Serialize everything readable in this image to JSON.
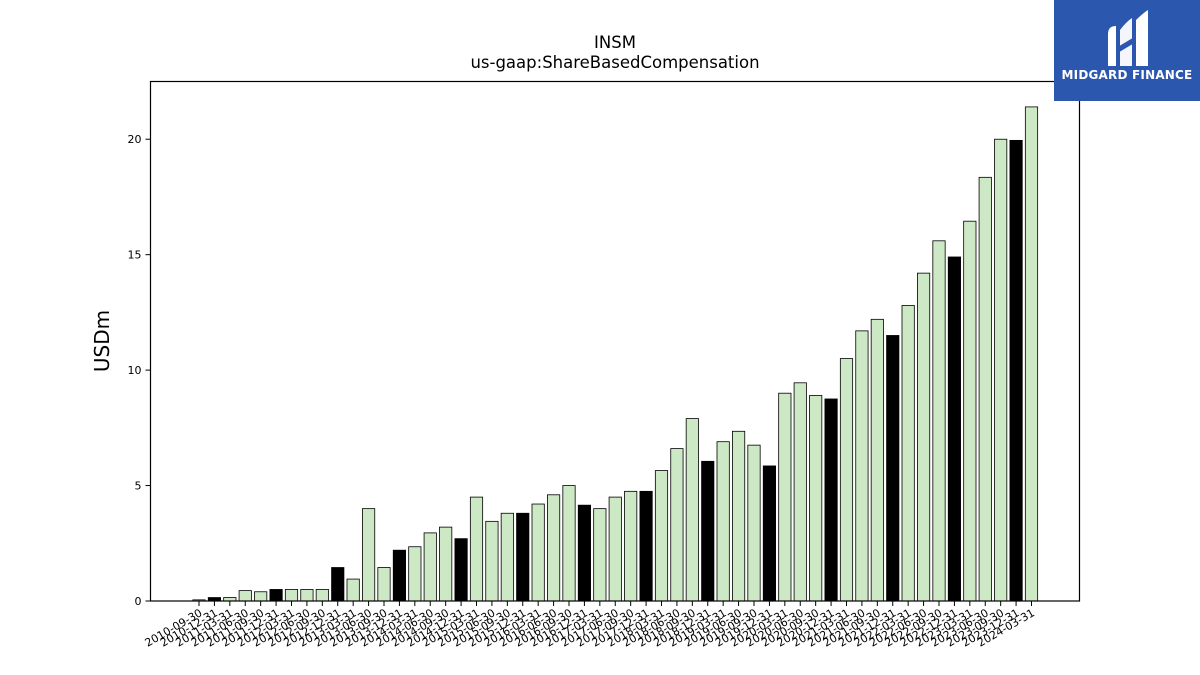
{
  "chart_data": {
    "type": "bar",
    "title": "INSM",
    "subtitle": "us-gaap:ShareBasedCompensation",
    "xlabel": "",
    "ylabel": "USDm",
    "ylim": [
      0,
      22.5
    ],
    "yticks": [
      0,
      5,
      10,
      15,
      20
    ],
    "grid": false,
    "colors": {
      "quarter": "#cce8c4",
      "fiscal_year": "#000000",
      "edge": "#000000"
    },
    "categories": [
      "2010-09-30",
      "2010-12-31",
      "2011-03-31",
      "2011-06-30",
      "2011-09-30",
      "2011-12-31",
      "2012-03-31",
      "2012-06-30",
      "2012-09-30",
      "2012-12-31",
      "2013-03-31",
      "2013-06-30",
      "2013-09-30",
      "2013-12-31",
      "2014-03-31",
      "2014-06-30",
      "2014-09-30",
      "2014-12-31",
      "2015-03-31",
      "2015-06-30",
      "2015-09-30",
      "2015-12-31",
      "2016-03-31",
      "2016-06-30",
      "2016-09-30",
      "2016-12-31",
      "2017-03-31",
      "2017-06-30",
      "2017-09-30",
      "2017-12-31",
      "2018-03-31",
      "2018-06-30",
      "2018-09-30",
      "2018-12-31",
      "2019-03-31",
      "2019-06-30",
      "2019-09-30",
      "2019-12-31",
      "2020-03-31",
      "2020-06-30",
      "2020-09-30",
      "2020-12-31",
      "2021-03-31",
      "2021-06-30",
      "2021-09-30",
      "2021-12-31",
      "2022-03-31",
      "2022-06-30",
      "2022-09-30",
      "2022-12-31",
      "2023-03-31",
      "2023-06-30",
      "2023-09-30",
      "2023-12-31",
      "2024-03-31"
    ],
    "values": [
      0.05,
      0.15,
      0.15,
      0.45,
      0.4,
      0.5,
      0.5,
      0.5,
      0.5,
      1.45,
      0.95,
      4.0,
      1.45,
      2.2,
      2.35,
      2.95,
      3.2,
      2.7,
      4.5,
      3.45,
      3.8,
      3.8,
      4.2,
      4.6,
      5.0,
      4.15,
      4.0,
      4.5,
      4.75,
      4.75,
      5.65,
      6.6,
      7.9,
      6.05,
      6.9,
      7.35,
      6.75,
      5.85,
      9.0,
      9.45,
      8.9,
      8.75,
      10.5,
      11.7,
      12.2,
      11.5,
      12.8,
      14.2,
      15.6,
      14.9,
      16.45,
      18.35,
      20.0,
      19.95,
      21.4
    ],
    "highlight_black": [
      false,
      true,
      false,
      false,
      false,
      true,
      false,
      false,
      false,
      true,
      false,
      false,
      false,
      true,
      false,
      false,
      false,
      true,
      false,
      false,
      false,
      true,
      false,
      false,
      false,
      true,
      false,
      false,
      false,
      true,
      false,
      false,
      false,
      true,
      false,
      false,
      false,
      true,
      false,
      false,
      false,
      true,
      false,
      false,
      false,
      true,
      false,
      false,
      false,
      true,
      false,
      false,
      false,
      true,
      false
    ]
  },
  "logo": {
    "text": "MIDGARD FINANCE",
    "icon": "midgard-logo-icon",
    "background": "#2b57ae"
  }
}
